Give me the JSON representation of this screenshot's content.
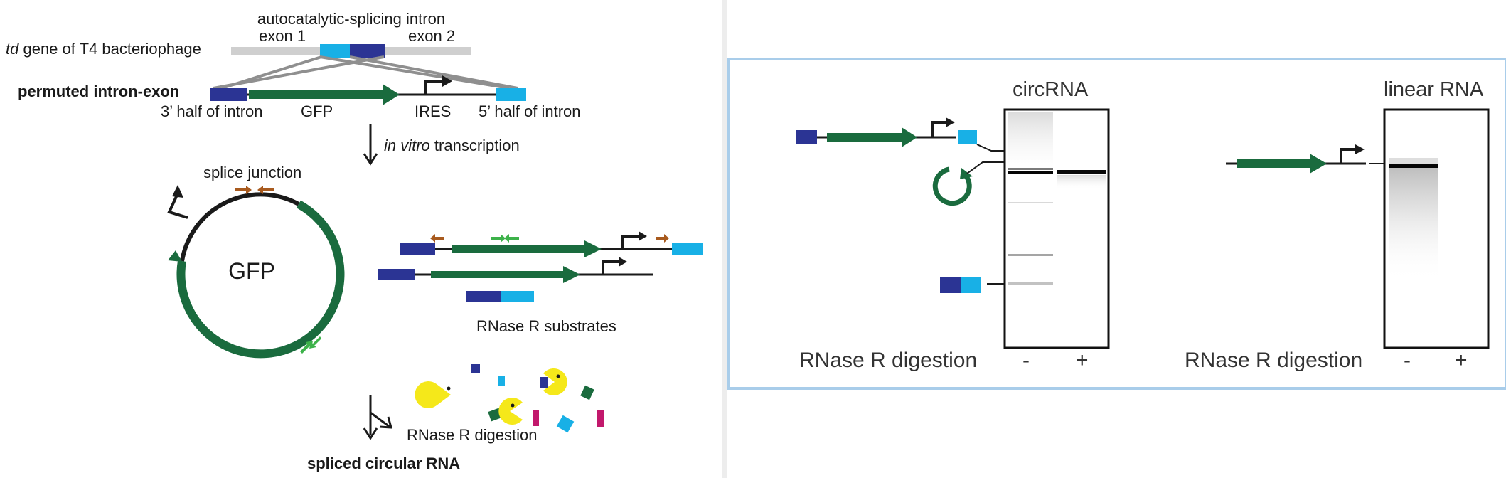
{
  "colors": {
    "exon_dark": "#2b3494",
    "exon_light": "#18b0e6",
    "gfp_green": "#1a6b3e",
    "primer_brown": "#a85a1e",
    "primer_green": "#3db24a",
    "pacman_yellow": "#f5e81a",
    "fragment_magenta": "#c2186c",
    "panel_border": "#a9cdea"
  },
  "left_panel": {
    "td_gene": {
      "italic": "td",
      "rest": " gene of T4 bacteriophage"
    },
    "autocatalytic_label": "autocatalytic-splicing intron",
    "exon1_label": "exon 1",
    "exon2_label": "exon 2",
    "permuted_label": "permuted intron-exon",
    "half3_label": "3’ half of intron",
    "gfp_label": "GFP",
    "ires_label": "IRES",
    "half5_label": "5’ half of intron",
    "ivt": {
      "italic": "in vitro",
      "rest": " transcription"
    },
    "splice_junction_label": "splice junction",
    "circle_gfp_label": "GFP",
    "rnase_substrates_label": "RNase R substrates",
    "rnase_digestion_label": "RNase R digestion",
    "spliced_circular_label": "spliced circular RNA"
  },
  "right_panel": {
    "circ_title": "circRNA",
    "linear_title": "linear RNA",
    "digestion_label_1": "RNase R digestion",
    "digestion_label_2": "RNase R digestion",
    "minus_1": "-",
    "plus_1": "+",
    "minus_2": "-",
    "plus_2": "+"
  }
}
